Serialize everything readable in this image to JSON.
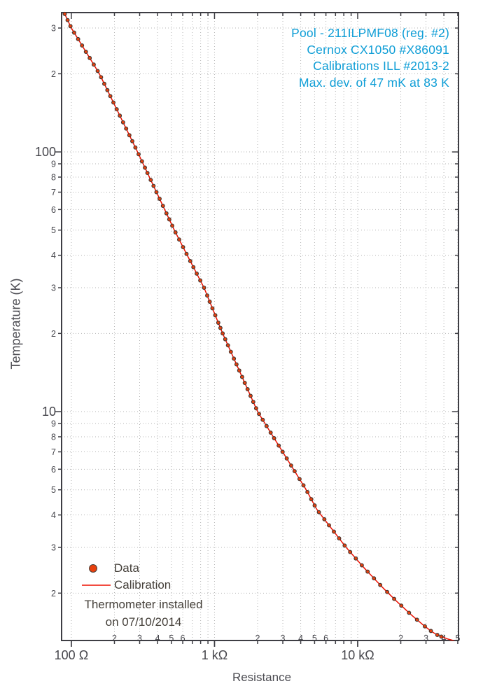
{
  "title_block": {
    "lines": [
      "Pool - 211ILPMF08 (reg. #2)",
      "Cernox CX1050 #X86091",
      "Calibrations ILL #2013-2",
      "Max. dev. of 47 mK at 83 K"
    ],
    "color": "#0d9dd6"
  },
  "legend": {
    "data_label": "Data",
    "calibration_label": "Calibration",
    "note_lines": [
      "Thermometer installed",
      "on 07/10/2014"
    ]
  },
  "chart_data": {
    "type": "scatter",
    "xlabel": "Resistance",
    "ylabel": "Temperature (K)",
    "x_scale": "log",
    "y_scale": "log",
    "xlim": [
      85.5,
      50600
    ],
    "ylim": [
      1.314,
      344
    ],
    "grid": "dotted-all-ticks",
    "legend_position": "lower-left",
    "x_ticks": {
      "decades": [
        {
          "v": 100,
          "label": "100 Ω"
        },
        {
          "v": 1000,
          "label": "1 kΩ"
        },
        {
          "v": 10000,
          "label": "10 kΩ"
        }
      ],
      "minor_label_max": 6
    },
    "y_ticks": {
      "decades": [
        {
          "v": 100,
          "label": "100"
        },
        {
          "v": 10,
          "label": "10"
        }
      ],
      "minor_label_max": 9
    },
    "colors": {
      "calibration_line": "#ed1000",
      "marker_fill": "#e8400e",
      "marker_stroke": "#3f3531",
      "frame": "#3e3e44",
      "grid": "#b3b3b3",
      "tick_text": "#46464c"
    },
    "series": [
      {
        "name": "Data",
        "type": "scatter",
        "temperatures_K": [
          340,
          322,
          305,
          288,
          272,
          257,
          243,
          230,
          217,
          205,
          194,
          183,
          173,
          164,
          155,
          146,
          138,
          130,
          123,
          116,
          110,
          104,
          98,
          92,
          87,
          83,
          78,
          74,
          70,
          66,
          62,
          58,
          55,
          52,
          49,
          46,
          43,
          40.5,
          38,
          36,
          34,
          32,
          30,
          28,
          26.5,
          25,
          23.5,
          22,
          21,
          20,
          19,
          18,
          17,
          16,
          15.2,
          14.4,
          13.6,
          12.9,
          12.2,
          11.5,
          10.9,
          10.3,
          9.8,
          9.3,
          8.8,
          8.3,
          7.9,
          7.4,
          7.0,
          6.6,
          6.2,
          5.9,
          5.5,
          5.2,
          4.9,
          4.6,
          4.35,
          4.1,
          3.85,
          3.65,
          3.45,
          3.25,
          3.05,
          2.88,
          2.72,
          2.56,
          2.42,
          2.28,
          2.15,
          2.02,
          1.9,
          1.79,
          1.68,
          1.58,
          1.49,
          1.43,
          1.38,
          1.36
        ]
      },
      {
        "name": "Calibration",
        "type": "line",
        "anchors_T_R": [
          [
            344,
            89
          ],
          [
            300,
            100
          ],
          [
            200,
            157
          ],
          [
            100,
            290
          ],
          [
            50,
            524
          ],
          [
            40,
            645
          ],
          [
            30,
            845
          ],
          [
            20,
            1140
          ],
          [
            10,
            2000
          ],
          [
            5,
            4370
          ],
          [
            4.2,
            5180
          ],
          [
            3,
            8300
          ],
          [
            2.5,
            11100
          ],
          [
            2.1,
            14960
          ],
          [
            1.86,
            18710
          ],
          [
            1.65,
            23660
          ],
          [
            1.5,
            29000
          ],
          [
            1.42,
            33000
          ],
          [
            1.38,
            36000
          ],
          [
            1.34,
            41000
          ],
          [
            1.31,
            47000
          ],
          [
            1.302,
            49500
          ]
        ]
      }
    ]
  }
}
